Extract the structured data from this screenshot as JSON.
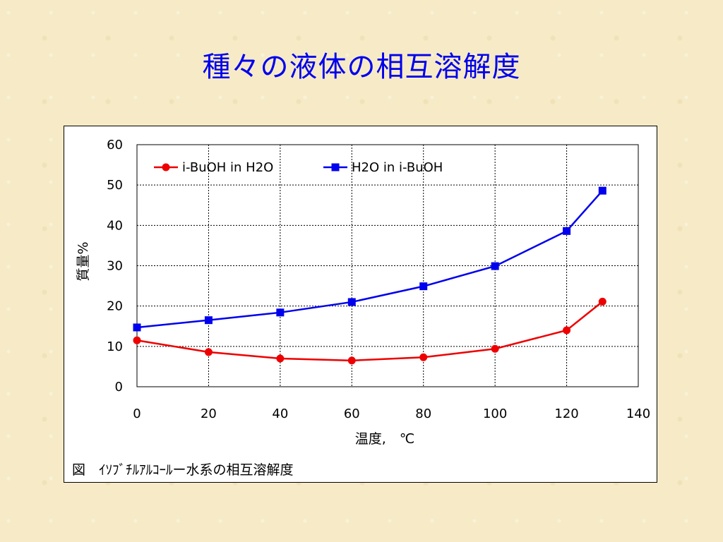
{
  "slide_title": "種々の液体の相互溶解度",
  "caption": "図　ｲｿﾌﾞﾁﾙｱﾙｺｰﾙー水系の相互溶解度",
  "chart_data": {
    "type": "line",
    "xlabel": "温度,　℃",
    "ylabel": "質量%",
    "xlim": [
      0,
      140
    ],
    "ylim": [
      0,
      60
    ],
    "xticks": [
      0,
      20,
      40,
      60,
      80,
      100,
      120,
      140
    ],
    "yticks": [
      0,
      10,
      20,
      30,
      40,
      50,
      60
    ],
    "grid": true,
    "legend_position": "top",
    "series": [
      {
        "name": "i-BuOH in H2O",
        "color": "#ee0000",
        "marker": "circle",
        "x": [
          0,
          20,
          40,
          60,
          80,
          100,
          120,
          130
        ],
        "y": [
          11.5,
          8.6,
          7.0,
          6.5,
          7.3,
          9.4,
          14.0,
          21.1
        ]
      },
      {
        "name": "H2O in i-BuOH",
        "color": "#0000ee",
        "marker": "square",
        "x": [
          0,
          20,
          40,
          60,
          80,
          100,
          120,
          130
        ],
        "y": [
          14.7,
          16.5,
          18.4,
          21.0,
          24.9,
          29.9,
          38.6,
          48.6
        ]
      }
    ]
  }
}
